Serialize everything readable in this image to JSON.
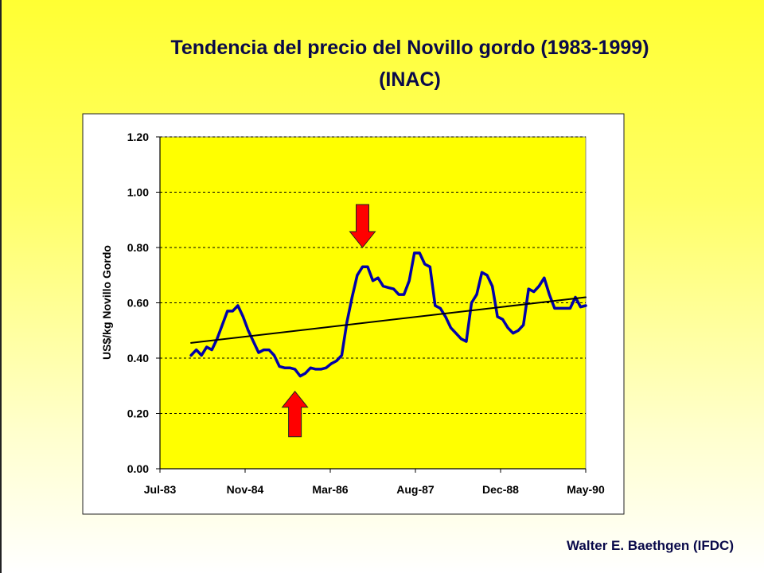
{
  "title_line1": "Tendencia del precio del Novillo gordo (1983-1999)",
  "title_line2": "(INAC)",
  "footer": "Walter E.  Baethgen (IFDC)",
  "chart_data": {
    "type": "line",
    "title": "",
    "xlabel": "",
    "ylabel": "US$/kg Novillo Gordo",
    "ylim": [
      0,
      1.2
    ],
    "y_ticks": [
      "0.00",
      "0.20",
      "0.40",
      "0.60",
      "0.80",
      "1.00",
      "1.20"
    ],
    "x_ticks": [
      "Jul-83",
      "Nov-84",
      "Mar-86",
      "Aug-87",
      "Dec-88",
      "May-90"
    ],
    "x_range": [
      "1983-07",
      "1990-05"
    ],
    "grid": "horizontal dashed",
    "plot_background": "#ffff00",
    "series": [
      {
        "color": "#0000aa",
        "x": [
          "1984-01",
          "1984-02",
          "1984-03",
          "1984-04",
          "1984-05",
          "1984-06",
          "1984-07",
          "1984-08",
          "1984-09",
          "1984-10",
          "1984-11",
          "1984-12",
          "1985-01",
          "1985-02",
          "1985-03",
          "1985-04",
          "1985-05",
          "1985-06",
          "1985-07",
          "1985-08",
          "1985-09",
          "1985-10",
          "1985-11",
          "1985-12",
          "1986-01",
          "1986-02",
          "1986-03",
          "1986-04",
          "1986-05",
          "1986-06",
          "1986-07",
          "1986-08",
          "1986-09",
          "1986-10",
          "1986-11",
          "1986-12",
          "1987-01",
          "1987-02",
          "1987-03",
          "1987-04",
          "1987-05",
          "1987-06",
          "1987-07",
          "1987-08",
          "1987-09",
          "1987-10",
          "1987-11",
          "1987-12",
          "1988-01",
          "1988-02",
          "1988-03",
          "1988-04",
          "1988-05",
          "1988-06",
          "1988-07",
          "1988-08",
          "1988-09",
          "1988-10",
          "1988-11",
          "1988-12",
          "1989-01",
          "1989-02",
          "1989-03",
          "1989-04",
          "1989-05",
          "1989-06",
          "1989-07",
          "1989-08",
          "1989-09",
          "1989-10",
          "1989-11",
          "1989-12",
          "1990-01",
          "1990-02",
          "1990-03",
          "1990-04",
          "1990-05"
        ],
        "values": [
          0.41,
          0.43,
          0.41,
          0.44,
          0.43,
          0.47,
          0.52,
          0.57,
          0.57,
          0.59,
          0.55,
          0.5,
          0.46,
          0.42,
          0.43,
          0.43,
          0.41,
          0.37,
          0.365,
          0.365,
          0.36,
          0.335,
          0.345,
          0.365,
          0.36,
          0.36,
          0.365,
          0.38,
          0.39,
          0.41,
          0.53,
          0.62,
          0.7,
          0.73,
          0.73,
          0.68,
          0.69,
          0.66,
          0.655,
          0.65,
          0.63,
          0.63,
          0.68,
          0.78,
          0.78,
          0.74,
          0.73,
          0.59,
          0.58,
          0.55,
          0.51,
          0.49,
          0.47,
          0.46,
          0.6,
          0.63,
          0.71,
          0.7,
          0.66,
          0.55,
          0.54,
          0.51,
          0.49,
          0.5,
          0.52,
          0.65,
          0.64,
          0.66,
          0.69,
          0.63,
          0.58,
          0.58,
          0.58,
          0.58,
          0.62,
          0.585,
          0.59
        ]
      },
      {
        "color": "#000000",
        "x": [
          "1984-01",
          "1990-05"
        ],
        "values": [
          0.455,
          0.62
        ]
      }
    ],
    "annotations": [
      {
        "type": "arrow",
        "direction": "down",
        "color": "#ff0000",
        "x": "1986-10",
        "y": 0.8
      },
      {
        "type": "arrow",
        "direction": "up",
        "color": "#ff0000",
        "x": "1985-09",
        "y": 0.28
      }
    ]
  }
}
